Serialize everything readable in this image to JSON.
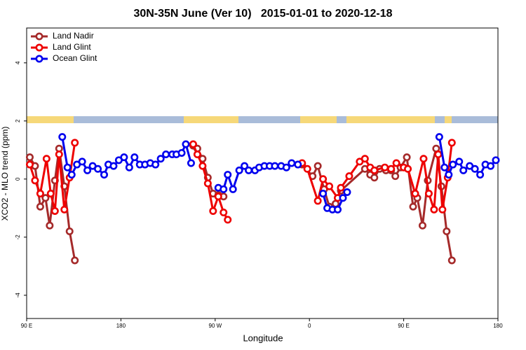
{
  "chart_data": {
    "type": "line",
    "title": "30N-35N June (Ver 10)   2015-01-01 to 2020-12-18",
    "xlabel": "Longitude",
    "ylabel": "XCO2 - MLO trend (ppm)",
    "xlim": [
      90,
      540
    ],
    "ylim": [
      -4.8,
      5.2
    ],
    "xticks": [
      {
        "value": 90,
        "label": "90 E"
      },
      180,
      {
        "value": 270,
        "label": "90 W"
      },
      {
        "value": 360,
        "label": "0"
      },
      {
        "value": 450,
        "label": "90 E"
      },
      {
        "value": 540,
        "label": "180"
      }
    ],
    "yticks": [
      -4,
      -2,
      0,
      2,
      4
    ],
    "legend": "upper left",
    "series": [
      {
        "name": "Land Nadir",
        "color": "#a52a2a",
        "x": [
          93,
          98,
          103,
          108,
          112,
          117,
          121,
          126,
          131,
          136,
          null,
          249,
          253,
          258,
          263,
          268,
          273,
          278,
          null,
          353,
          363,
          368,
          374,
          379,
          385,
          390,
          413,
          418,
          422,
          427,
          433,
          438,
          442,
          447,
          453,
          459,
          463,
          468,
          473,
          481,
          486,
          491,
          496
        ],
        "values": [
          0.75,
          0.45,
          -0.95,
          -0.65,
          -1.6,
          -0.05,
          1.05,
          -0.25,
          -1.8,
          -2.8,
          null,
          1.15,
          1.05,
          0.7,
          0.05,
          -0.5,
          -0.55,
          -0.6,
          null,
          0.5,
          0.1,
          0.45,
          -0.35,
          -0.95,
          -0.85,
          -0.4,
          0.35,
          0.15,
          0.05,
          0.35,
          0.3,
          0.3,
          0.1,
          0.4,
          0.75,
          -0.95,
          -0.65,
          -1.6,
          -0.05,
          1.05,
          -0.25,
          -1.8,
          -2.8
        ]
      },
      {
        "name": "Land Glint",
        "color": "#ee0000",
        "x": [
          93,
          98,
          103,
          109,
          113,
          117,
          121,
          126,
          131,
          136,
          null,
          249,
          253,
          258,
          263,
          268,
          273,
          278,
          282,
          null,
          353,
          358,
          368,
          373,
          379,
          387,
          390,
          398,
          408,
          413,
          418,
          422,
          432,
          438,
          443,
          450,
          454,
          461,
          469,
          474,
          479,
          483,
          487,
          492,
          496
        ],
        "values": [
          0.5,
          -0.05,
          -0.5,
          0.7,
          -0.5,
          -1.1,
          0.85,
          -1.05,
          0.05,
          1.25,
          null,
          1.2,
          0.85,
          0.45,
          -0.15,
          -1.1,
          -0.6,
          -1.15,
          -1.4,
          null,
          0.55,
          0.35,
          -0.75,
          0.0,
          -0.25,
          -0.65,
          -0.3,
          0.1,
          0.6,
          0.7,
          0.4,
          0.3,
          0.4,
          0.35,
          0.55,
          0.4,
          0.35,
          -0.5,
          0.7,
          -0.5,
          -1.05,
          0.85,
          -1.05,
          0.05,
          1.25
        ]
      },
      {
        "name": "Ocean Glint",
        "color": "#0000ee",
        "x": [
          124,
          129,
          133,
          138,
          143,
          148,
          153,
          158,
          164,
          168,
          173,
          178,
          183,
          188,
          193,
          198,
          203,
          208,
          213,
          218,
          223,
          229,
          233,
          238,
          242,
          247,
          null,
          273,
          278,
          282,
          287,
          293,
          298,
          302,
          308,
          312,
          317,
          322,
          327,
          333,
          338,
          343,
          349,
          null,
          373,
          377,
          382,
          387,
          392,
          396,
          null,
          484,
          489,
          493,
          497,
          503,
          507,
          513,
          518,
          523,
          528,
          533,
          538
        ],
        "values": [
          1.45,
          0.4,
          0.15,
          0.5,
          0.6,
          0.3,
          0.45,
          0.35,
          0.15,
          0.5,
          0.45,
          0.65,
          0.75,
          0.4,
          0.75,
          0.5,
          0.5,
          0.55,
          0.5,
          0.7,
          0.85,
          0.85,
          0.85,
          0.9,
          1.2,
          0.55,
          null,
          -0.3,
          -0.35,
          0.15,
          -0.35,
          0.3,
          0.45,
          0.3,
          0.3,
          0.4,
          0.45,
          0.45,
          0.45,
          0.45,
          0.4,
          0.55,
          0.5,
          null,
          -0.5,
          -1.0,
          -1.05,
          -1.05,
          -0.65,
          -0.45,
          null,
          1.45,
          0.4,
          0.15,
          0.5,
          0.6,
          0.3,
          0.45,
          0.35,
          0.15,
          0.5,
          0.45,
          0.65
        ]
      }
    ]
  }
}
